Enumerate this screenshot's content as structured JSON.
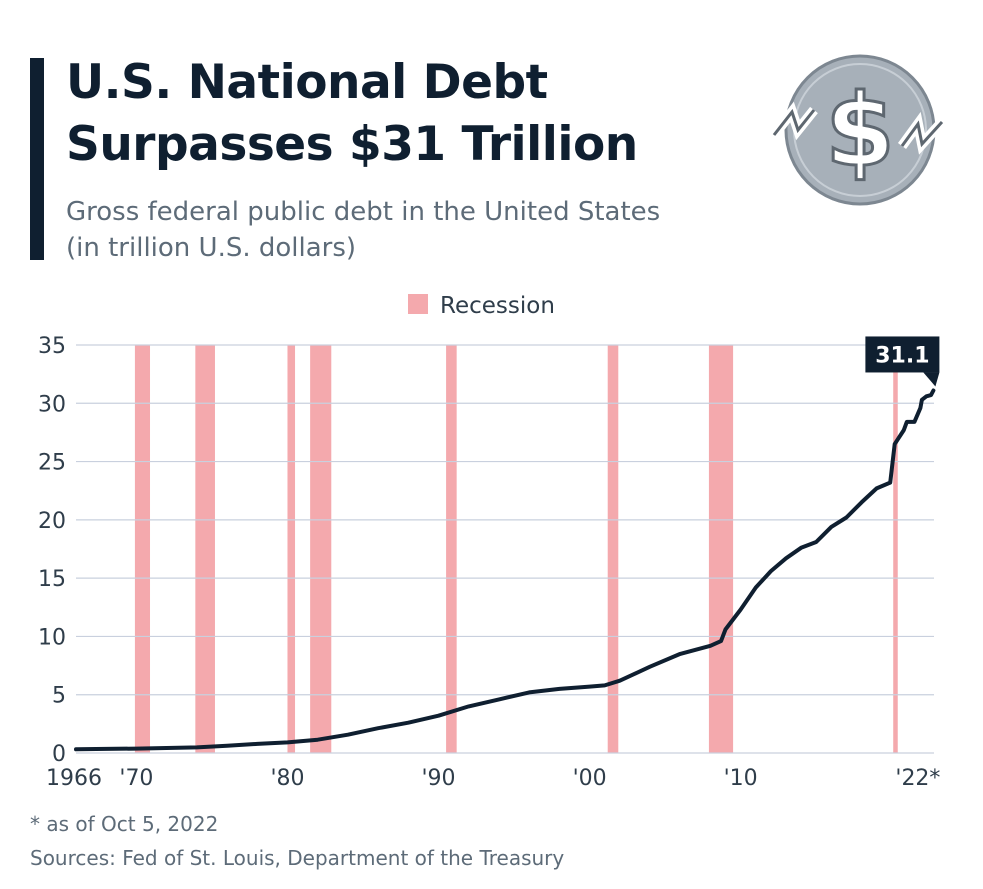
{
  "header": {
    "title_line1": "U.S. National Debt",
    "title_line2": "Surpasses $31 Trillion",
    "subtitle_line1": "Gross federal public debt in the United States",
    "subtitle_line2": "(in trillion U.S. dollars)",
    "logo_icon": "dollar-coin-falling-icon"
  },
  "footer": {
    "footnote": "* as of Oct 5, 2022",
    "sources": "Sources: Fed of St. Louis, Department of the Treasury"
  },
  "colors": {
    "line": "#0f1f30",
    "recession": "#f4a9ad",
    "grid": "#c9d0de",
    "callout_bg": "#0f1f30",
    "logo_fill": "#a7b0b9"
  },
  "chart_data": {
    "type": "line",
    "legend": {
      "label": "Recession",
      "placement": "top-center"
    },
    "x_range": [
      1966,
      2022.8
    ],
    "ylim": [
      0,
      35
    ],
    "y_ticks": [
      0,
      5,
      10,
      15,
      20,
      25,
      30,
      35
    ],
    "x_ticks": [
      {
        "value": 1966,
        "label": "1966"
      },
      {
        "value": 1970,
        "label": "'70"
      },
      {
        "value": 1980,
        "label": "'80"
      },
      {
        "value": 1990,
        "label": "'90"
      },
      {
        "value": 2000,
        "label": "'00"
      },
      {
        "value": 2010,
        "label": "'10"
      },
      {
        "value": 2022,
        "label": "'22*"
      }
    ],
    "grid": true,
    "recessions": [
      [
        1969.9,
        1970.9
      ],
      [
        1973.9,
        1975.2
      ],
      [
        1980.0,
        1980.5
      ],
      [
        1981.5,
        1982.9
      ],
      [
        1990.5,
        1991.2
      ],
      [
        2001.2,
        2001.9
      ],
      [
        2007.9,
        2009.5
      ],
      [
        2020.1,
        2020.4
      ]
    ],
    "series": [
      {
        "x": [
          1966,
          1968,
          1970,
          1972,
          1974,
          1976,
          1978,
          1980,
          1982,
          1984,
          1986,
          1988,
          1990,
          1992,
          1994,
          1996,
          1998,
          2000,
          2001,
          2002,
          2004,
          2006,
          2008,
          2008.7,
          2009,
          2010,
          2011,
          2012,
          2013,
          2014,
          2015,
          2016,
          2017,
          2018,
          2019,
          2019.9,
          2020.2,
          2020.4,
          2020.8,
          2021,
          2021.5,
          2021.9,
          2022,
          2022.3,
          2022.6,
          2022.76
        ],
        "values": [
          0.32,
          0.35,
          0.38,
          0.43,
          0.48,
          0.63,
          0.78,
          0.91,
          1.14,
          1.57,
          2.13,
          2.6,
          3.2,
          4.0,
          4.6,
          5.2,
          5.5,
          5.7,
          5.8,
          6.2,
          7.4,
          8.5,
          9.2,
          9.6,
          10.6,
          12.3,
          14.2,
          15.6,
          16.7,
          17.6,
          18.1,
          19.4,
          20.2,
          21.5,
          22.7,
          23.2,
          26.5,
          26.9,
          27.7,
          28.4,
          28.4,
          29.6,
          30.3,
          30.6,
          30.7,
          31.1
        ]
      }
    ],
    "annotations": [
      {
        "x": 2022.76,
        "y": 31.1,
        "text": "31.1"
      }
    ]
  }
}
